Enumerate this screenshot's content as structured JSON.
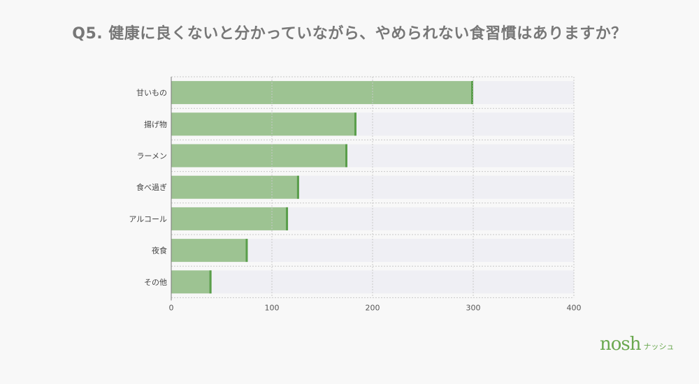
{
  "chart_data": {
    "type": "bar",
    "orientation": "horizontal",
    "title": "Q5. 健康に良くないと分かっていながら、やめられない食習慣はありますか？",
    "categories": [
      "甘いもの",
      "揚げ物",
      "ラーメン",
      "食べ過ぎ",
      "アルコール",
      "夜食",
      "その他"
    ],
    "values": [
      300,
      184,
      175,
      127,
      116,
      76,
      40
    ],
    "xlim": [
      0,
      400
    ],
    "xticks": [
      "0",
      "100",
      "200",
      "300",
      "400"
    ],
    "grid": true,
    "xlabel": "",
    "ylabel": "",
    "colors": {
      "bar": "#9dc392",
      "bar_edge": "#5a9e4b",
      "track": "#efeff4",
      "grid": "#c8c8c8"
    }
  },
  "brand": {
    "logo_main": "nosh",
    "logo_sub": "ナッシュ"
  }
}
